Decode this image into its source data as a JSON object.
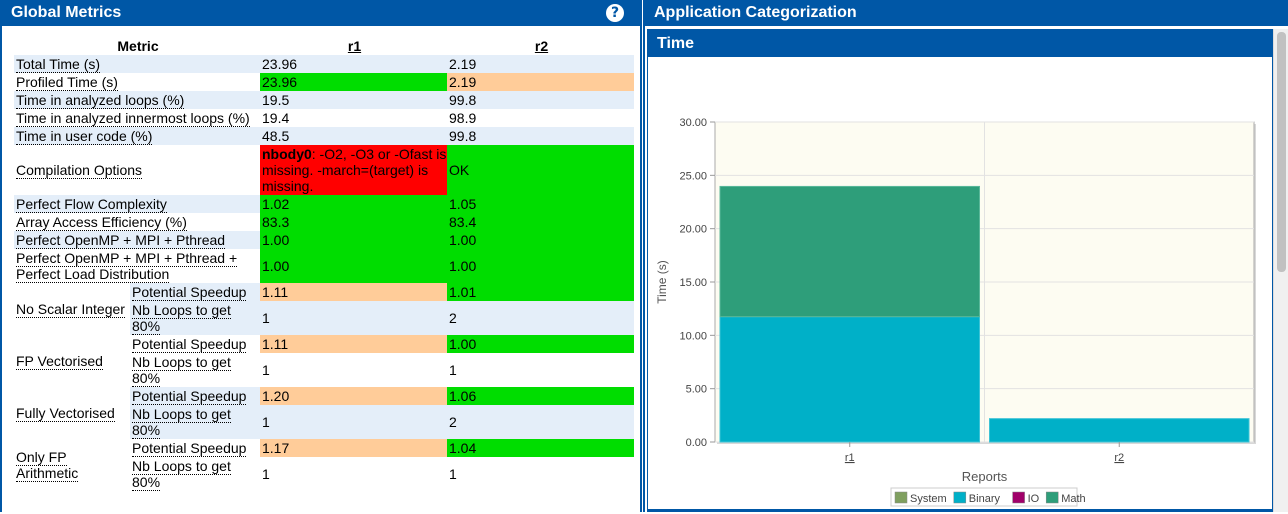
{
  "left": {
    "title": "Global Metrics",
    "help_label": "?",
    "headers": {
      "metric": "Metric",
      "r1": "r1",
      "r2": "r2"
    },
    "rows": [
      {
        "metric": "Total Time (s)",
        "r1": "23.96",
        "r2": "2.19"
      },
      {
        "metric": "Profiled Time (s)",
        "r1": "23.96",
        "r2": "2.19"
      },
      {
        "metric": "Time in analyzed loops (%)",
        "r1": "19.5",
        "r2": "99.8"
      },
      {
        "metric": "Time in analyzed innermost loops (%)",
        "r1": "19.4",
        "r2": "98.9"
      },
      {
        "metric": "Time in user code (%)",
        "r1": "48.5",
        "r2": "99.8"
      },
      {
        "metric": "Compilation Options",
        "r1_bold": "nbody0",
        "r1": ": -O2, -O3 or -Ofast is missing. -march=(target) is missing.",
        "r2": "OK"
      },
      {
        "metric": "Perfect Flow Complexity",
        "r1": "1.02",
        "r2": "1.05"
      },
      {
        "metric": "Array Access Efficiency (%)",
        "r1": "83.3",
        "r2": "83.4"
      },
      {
        "metric": "Perfect OpenMP + MPI + Pthread",
        "r1": "1.00",
        "r2": "1.00"
      },
      {
        "metric": "Perfect OpenMP + MPI + Pthread + Perfect Load Distribution",
        "r1": "1.00",
        "r2": "1.00"
      }
    ],
    "groups": [
      {
        "name": "No Scalar Integer",
        "speedup_label": "Potential Speedup",
        "speedup_r1": "1.11",
        "speedup_r2": "1.01",
        "loops_label": "Nb Loops to get 80%",
        "loops_r1": "1",
        "loops_r2": "2"
      },
      {
        "name": "FP Vectorised",
        "speedup_label": "Potential Speedup",
        "speedup_r1": "1.11",
        "speedup_r2": "1.00",
        "loops_label": "Nb Loops to get 80%",
        "loops_r1": "1",
        "loops_r2": "1"
      },
      {
        "name": "Fully Vectorised",
        "speedup_label": "Potential Speedup",
        "speedup_r1": "1.20",
        "speedup_r2": "1.06",
        "loops_label": "Nb Loops to get 80%",
        "loops_r1": "1",
        "loops_r2": "2"
      },
      {
        "name": "Only FP Arithmetic",
        "speedup_label": "Potential Speedup",
        "speedup_r1": "1.17",
        "speedup_r2": "1.04",
        "loops_label": "Nb Loops to get 80%",
        "loops_r1": "1",
        "loops_r2": "1"
      }
    ],
    "colors": {
      "green": "#00dd00",
      "orange": "#ffcc99",
      "red": "#ff0000",
      "header": "#0057a6"
    }
  },
  "right": {
    "title": "Application Categorization",
    "chart_title": "Time"
  },
  "chart_data": {
    "type": "bar",
    "stacked": true,
    "categories": [
      "r1",
      "r2"
    ],
    "series": [
      {
        "name": "System",
        "color": "#7f9f5f",
        "values": [
          0,
          0
        ]
      },
      {
        "name": "Binary",
        "color": "#00b0c8",
        "values": [
          11.75,
          2.19
        ]
      },
      {
        "name": "IO",
        "color": "#a0006a",
        "values": [
          0,
          0
        ]
      },
      {
        "name": "Math",
        "color": "#2e9e7a",
        "values": [
          12.21,
          0
        ]
      }
    ],
    "xlabel": "Reports",
    "ylabel": "Time (s)",
    "ylim": [
      0,
      30
    ],
    "yticks": [
      "0.00",
      "5.00",
      "10.00",
      "15.00",
      "20.00",
      "25.00",
      "30.00"
    ],
    "grid": true,
    "legend": "bottom"
  }
}
